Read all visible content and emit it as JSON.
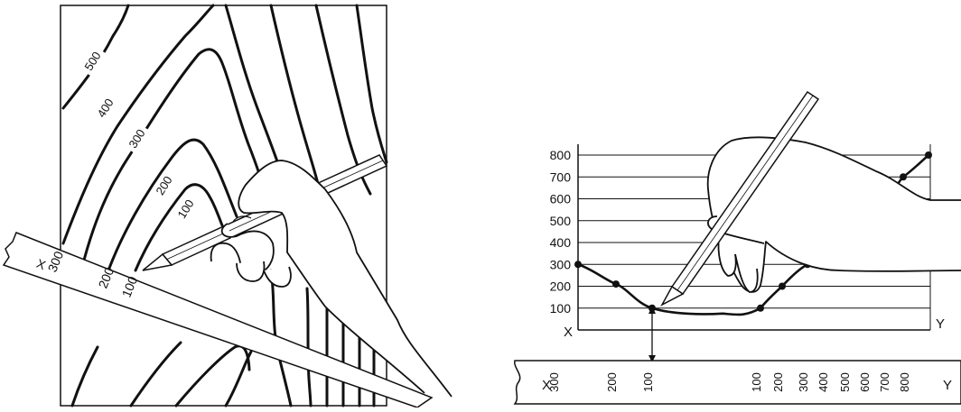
{
  "map_panel": {
    "contour_labels": [
      "500",
      "400",
      "300",
      "200",
      "100"
    ],
    "ruler": {
      "start_letter": "X",
      "tick_labels": [
        "300",
        "200",
        "100"
      ]
    }
  },
  "profile_panel": {
    "y_tick_labels": [
      "800",
      "700",
      "600",
      "500",
      "400",
      "300",
      "200",
      "100"
    ],
    "x_start_letter": "X",
    "x_end_letter": "Y",
    "ruler": {
      "start_letter": "X",
      "end_letter": "Y",
      "left_labels": [
        "300",
        "200",
        "100"
      ],
      "right_labels": [
        "100",
        "200",
        "300",
        "400",
        "500",
        "600",
        "700",
        "800"
      ]
    },
    "profile_points": [
      300,
      210,
      100,
      100,
      200,
      300,
      700,
      800
    ]
  },
  "colors": {
    "ink": "#111111",
    "paper": "#ffffff"
  }
}
